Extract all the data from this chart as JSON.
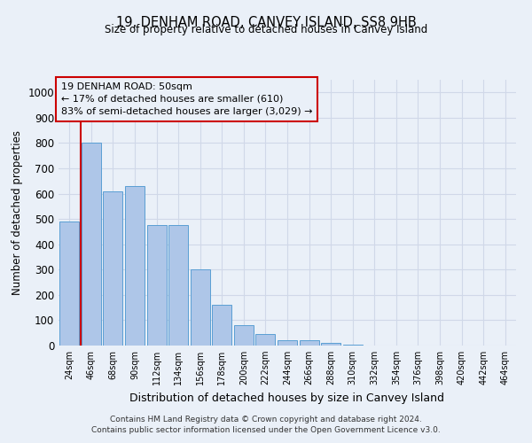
{
  "title1": "19, DENHAM ROAD, CANVEY ISLAND, SS8 9HB",
  "title2": "Size of property relative to detached houses in Canvey Island",
  "xlabel": "Distribution of detached houses by size in Canvey Island",
  "ylabel": "Number of detached properties",
  "annotation_line1": "19 DENHAM ROAD: 50sqm",
  "annotation_line2": "← 17% of detached houses are smaller (610)",
  "annotation_line3": "83% of semi-detached houses are larger (3,029) →",
  "categories": [
    "24sqm",
    "46sqm",
    "68sqm",
    "90sqm",
    "112sqm",
    "134sqm",
    "156sqm",
    "178sqm",
    "200sqm",
    "222sqm",
    "244sqm",
    "266sqm",
    "288sqm",
    "310sqm",
    "332sqm",
    "354sqm",
    "376sqm",
    "398sqm",
    "420sqm",
    "442sqm",
    "464sqm"
  ],
  "values": [
    490,
    800,
    610,
    630,
    475,
    475,
    300,
    160,
    80,
    45,
    20,
    20,
    10,
    5,
    0,
    0,
    0,
    0,
    0,
    0,
    0
  ],
  "bar_color": "#aec6e8",
  "bar_edge_color": "#5a9fd4",
  "marker_color": "#cc0000",
  "ylim": [
    0,
    1050
  ],
  "yticks": [
    0,
    100,
    200,
    300,
    400,
    500,
    600,
    700,
    800,
    900,
    1000
  ],
  "grid_color": "#d0d8e8",
  "bg_color": "#eaf0f8",
  "footer1": "Contains HM Land Registry data © Crown copyright and database right 2024.",
  "footer2": "Contains public sector information licensed under the Open Government Licence v3.0."
}
